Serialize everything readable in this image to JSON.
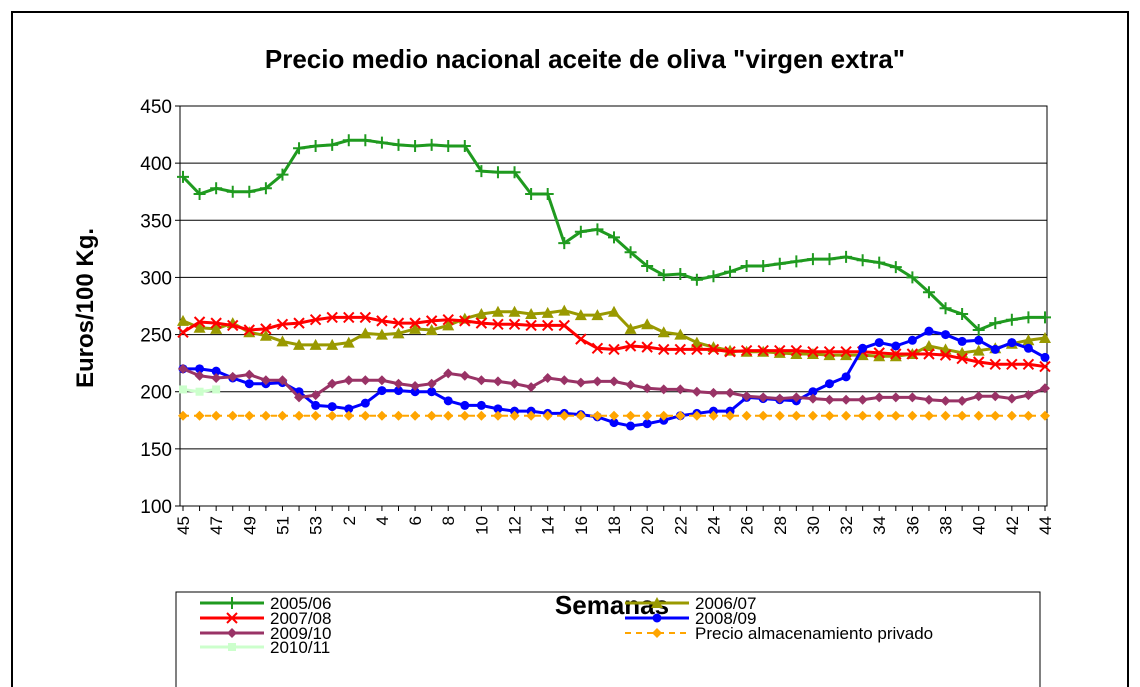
{
  "chart_data": {
    "type": "line",
    "title": "Precio medio nacional aceite de oliva \"virgen extra\"",
    "y_label": "Euros/100 Kg.",
    "x_label": "Semanas",
    "categories": [
      "45",
      null,
      "47",
      null,
      "49",
      null,
      "51",
      null,
      "53",
      null,
      "2",
      null,
      "4",
      null,
      "6",
      null,
      "8",
      null,
      "10",
      null,
      "12",
      null,
      "14",
      null,
      "16",
      null,
      "18",
      null,
      "20",
      null,
      "22",
      null,
      "24",
      null,
      "26",
      null,
      "28",
      null,
      "30",
      null,
      "32",
      null,
      "34",
      null,
      "36",
      null,
      "38",
      null,
      "40",
      null,
      "42",
      null,
      "44"
    ],
    "ylim": [
      100,
      450
    ],
    "yticks": [
      100,
      150,
      200,
      250,
      300,
      350,
      400,
      450
    ],
    "grid": true,
    "series": [
      {
        "name": "2005/06",
        "color": "#1f9a1f",
        "marker": "plus",
        "values": [
          388,
          373,
          378,
          375,
          375,
          378,
          390,
          413,
          415,
          416,
          420,
          420,
          418,
          416,
          415,
          416,
          415,
          415,
          393,
          392,
          392,
          373,
          373,
          330,
          340,
          342,
          335,
          322,
          310,
          302,
          303,
          298,
          301,
          305,
          310,
          310,
          312,
          314,
          316,
          316,
          318,
          315,
          313,
          309,
          300,
          287,
          273,
          268,
          254,
          260,
          263,
          265,
          265
        ]
      },
      {
        "name": "2006/07",
        "color": "#999900",
        "marker": "triangle",
        "values": [
          262,
          256,
          255,
          260,
          252,
          249,
          244,
          241,
          241,
          241,
          243,
          251,
          250,
          251,
          255,
          254,
          258,
          264,
          268,
          270,
          270,
          268,
          269,
          271,
          267,
          267,
          270,
          255,
          259,
          252,
          250,
          243,
          239,
          236,
          235,
          235,
          234,
          233,
          233,
          232,
          232,
          232,
          231,
          231,
          233,
          240,
          237,
          234,
          236,
          238,
          242,
          245,
          247
        ]
      },
      {
        "name": "2007/08",
        "color": "#ff0000",
        "marker": "cross",
        "values": [
          252,
          261,
          260,
          258,
          254,
          255,
          259,
          260,
          263,
          265,
          265,
          265,
          262,
          260,
          260,
          262,
          263,
          262,
          260,
          259,
          259,
          258,
          258,
          258,
          246,
          238,
          237,
          240,
          239,
          237,
          237,
          237,
          237,
          235,
          236,
          236,
          236,
          236,
          235,
          235,
          235,
          235,
          234,
          233,
          233,
          233,
          232,
          229,
          226,
          224,
          224,
          224,
          222
        ]
      },
      {
        "name": "2008/09",
        "color": "#0000ff",
        "marker": "circle",
        "values": [
          220,
          220,
          218,
          212,
          207,
          207,
          208,
          200,
          188,
          187,
          185,
          190,
          201,
          201,
          200,
          200,
          192,
          188,
          188,
          185,
          183,
          183,
          181,
          181,
          180,
          178,
          173,
          170,
          172,
          175,
          179,
          181,
          183,
          183,
          195,
          194,
          193,
          192,
          200,
          207,
          213,
          238,
          243,
          240,
          245,
          253,
          250,
          244,
          245,
          237,
          243,
          238,
          230
        ]
      },
      {
        "name": "2009/10",
        "color": "#993366",
        "marker": "diamond",
        "values": [
          220,
          214,
          212,
          213,
          215,
          210,
          210,
          195,
          197,
          207,
          210,
          210,
          210,
          207,
          205,
          207,
          216,
          214,
          210,
          209,
          207,
          204,
          212,
          210,
          208,
          209,
          209,
          206,
          203,
          202,
          202,
          200,
          199,
          199,
          196,
          195,
          194,
          195,
          194,
          193,
          193,
          193,
          195,
          195,
          195,
          193,
          192,
          192,
          196,
          196,
          194,
          197,
          203
        ]
      },
      {
        "name": "Precio almacenamiento privado",
        "color": "#ffa500",
        "marker": "diamond",
        "dashed": true,
        "values": [
          179,
          179,
          179,
          179,
          179,
          179,
          179,
          179,
          179,
          179,
          179,
          179,
          179,
          179,
          179,
          179,
          179,
          179,
          179,
          179,
          179,
          179,
          179,
          179,
          179,
          179,
          179,
          179,
          179,
          179,
          179,
          179,
          179,
          179,
          179,
          179,
          179,
          179,
          179,
          179,
          179,
          179,
          179,
          179,
          179,
          179,
          179,
          179,
          179,
          179,
          179,
          179,
          179
        ]
      },
      {
        "name": "2010/11",
        "color": "#ccffcc",
        "marker": "square",
        "values": [
          202,
          200,
          202,
          null,
          null,
          null,
          null,
          null,
          null,
          null,
          null,
          null,
          null,
          null,
          null,
          null,
          null,
          null,
          null,
          null,
          null,
          null,
          null,
          null,
          null,
          null,
          null,
          null,
          null,
          null,
          null,
          null,
          null,
          null,
          null,
          null,
          null,
          null,
          null,
          null,
          null,
          null,
          null,
          null,
          null,
          null,
          null,
          null,
          null,
          null,
          null,
          null,
          null
        ]
      }
    ]
  }
}
